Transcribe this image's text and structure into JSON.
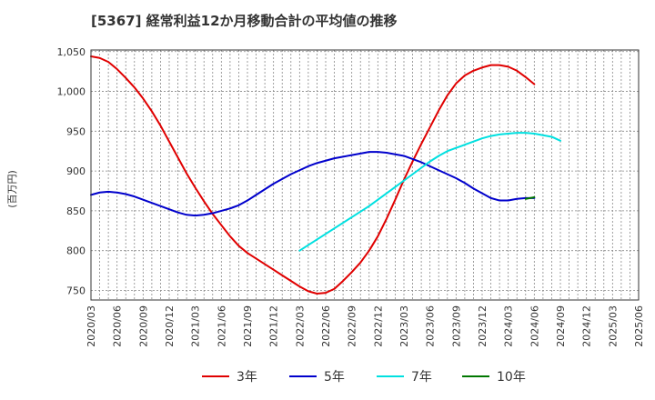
{
  "chart_data": {
    "type": "line",
    "title": "[5367]  経常利益12か月移動合計の平均値の推移",
    "ylabel": "(百万円)",
    "xlabel": "",
    "ylim": [
      738,
      1052
    ],
    "yticks": [
      750,
      800,
      850,
      900,
      950,
      1000,
      1050
    ],
    "ytick_labels": [
      "750",
      "800",
      "850",
      "900",
      "950",
      "1,000",
      "1,050"
    ],
    "x_ticks": [
      "2020/03",
      "2020/06",
      "2020/09",
      "2020/12",
      "2021/03",
      "2021/06",
      "2021/09",
      "2021/12",
      "2022/03",
      "2022/06",
      "2022/09",
      "2022/12",
      "2023/03",
      "2023/06",
      "2023/09",
      "2023/12",
      "2024/03",
      "2024/06",
      "2024/09",
      "2024/12",
      "2025/03",
      "2025/06"
    ],
    "grid": true,
    "legend_position": "bottom",
    "series": [
      {
        "name": "3年",
        "color": "#e00000",
        "start_index": 0,
        "values": [
          1044,
          1042,
          1037,
          1028,
          1017,
          1005,
          991,
          975,
          957,
          937,
          917,
          897,
          879,
          862,
          846,
          832,
          818,
          806,
          797,
          790,
          783,
          776,
          769,
          762,
          755,
          749,
          746,
          747,
          752,
          762,
          773,
          785,
          800,
          818,
          840,
          864,
          889,
          912,
          934,
          955,
          976,
          995,
          1010,
          1020,
          1026,
          1030,
          1033,
          1033,
          1031,
          1026,
          1018,
          1009
        ]
      },
      {
        "name": "5年",
        "color": "#0000cc",
        "start_index": 0,
        "values": [
          870,
          873,
          874,
          873,
          871,
          868,
          864,
          860,
          856,
          852,
          848,
          845,
          844,
          845,
          847,
          850,
          853,
          857,
          863,
          870,
          877,
          884,
          890,
          896,
          901,
          906,
          910,
          913,
          916,
          918,
          920,
          922,
          924,
          924,
          923,
          921,
          919,
          915,
          911,
          906,
          901,
          896,
          891,
          885,
          878,
          872,
          866,
          863,
          863,
          865,
          866,
          866
        ]
      },
      {
        "name": "7年",
        "color": "#00e0e0",
        "start_index": 24,
        "values": [
          800,
          807,
          814,
          821,
          828,
          835,
          842,
          849,
          856,
          864,
          872,
          880,
          888,
          896,
          904,
          912,
          919,
          925,
          929,
          933,
          937,
          941,
          944,
          946,
          947,
          948,
          948,
          947,
          945,
          943,
          938
        ]
      },
      {
        "name": "10年",
        "color": "#007700",
        "start_index": 50,
        "values": [
          865,
          867
        ]
      }
    ]
  }
}
